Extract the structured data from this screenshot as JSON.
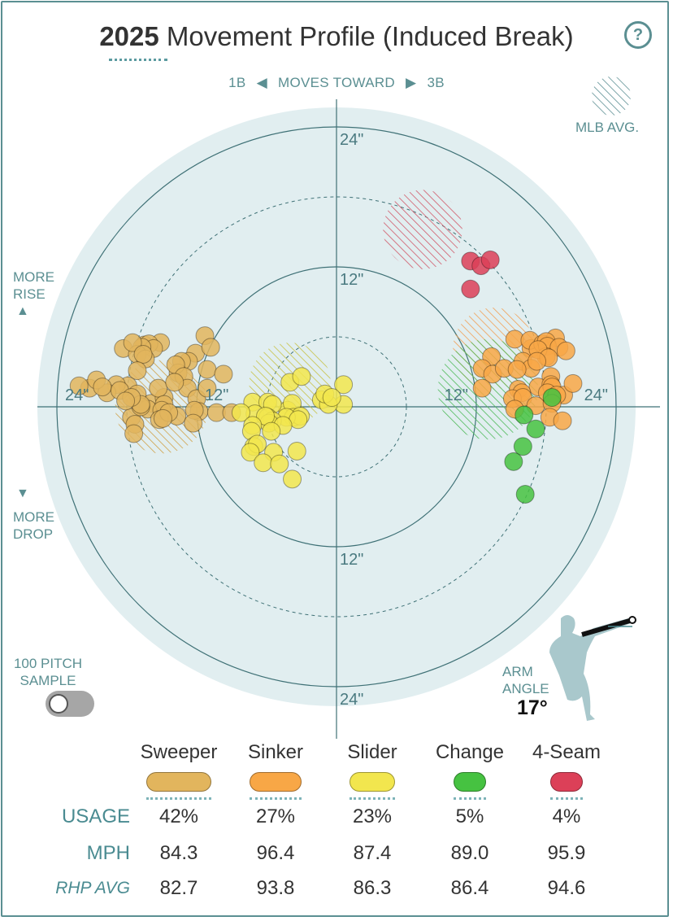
{
  "header": {
    "year": "2025",
    "title": "Movement Profile (Induced Break)",
    "help": "?"
  },
  "direction": {
    "left": "1B",
    "center": "MOVES TOWARD",
    "right": "3B"
  },
  "side_labels": {
    "rise": [
      "MORE",
      "RISE"
    ],
    "drop": [
      "MORE",
      "DROP"
    ],
    "mlb_avg": "MLB AVG."
  },
  "sample": {
    "label_line1": "100 PITCH",
    "label_line2": "SAMPLE",
    "enabled": false
  },
  "arm_angle": {
    "line1": "ARM",
    "line2": "ANGLE",
    "value": "17°"
  },
  "icons": {
    "help": "question-icon",
    "rise": "triangle-up-icon",
    "drop": "triangle-down-icon",
    "toggle": "toggle-switch",
    "pitcher": "pitcher-silhouette-icon",
    "mlb_avg": "hatched-circle-icon"
  },
  "chart_data": {
    "type": "scatter",
    "title": "Movement Profile (Induced Break)",
    "x_axis": {
      "range": [
        -24,
        24
      ],
      "unit": "in",
      "ring_labels": [
        "24\"",
        "12\"",
        "12\"",
        "24\""
      ]
    },
    "y_axis": {
      "range": [
        -24,
        24
      ],
      "unit": "in",
      "ring_labels": [
        "24\"",
        "12\"",
        "12\"",
        "24\""
      ]
    },
    "rings": [
      6,
      12,
      18,
      24
    ],
    "colors": {
      "background_disc": "#e1eef0",
      "ring": "#3f7176",
      "axis": "#3f7176"
    },
    "series": [
      {
        "name": "Sweeper",
        "color": "#e2b55d",
        "mlb_avg": {
          "x": -15,
          "y": 0,
          "r": 4
        },
        "points": [
          [
            -18.3,
            5
          ],
          [
            -16.5,
            5.3
          ],
          [
            -15.1,
            5.5
          ],
          [
            -16.1,
            5.4
          ],
          [
            -15.7,
            5
          ],
          [
            -16.7,
            5.1
          ],
          [
            -17.1,
            4.5
          ],
          [
            -17.5,
            5.5
          ],
          [
            -16.4,
            4.1
          ],
          [
            -16.6,
            4.5
          ],
          [
            -12.1,
            4.6
          ],
          [
            -12.7,
            3.9
          ],
          [
            -11.3,
            6.1
          ],
          [
            -10.8,
            5.1
          ],
          [
            -13.3,
            3.9
          ],
          [
            -13.6,
            2.9
          ],
          [
            -13.8,
            3.6
          ],
          [
            -13.1,
            2.6
          ],
          [
            -12.8,
            1.6
          ],
          [
            -11.1,
            3.2
          ],
          [
            -9.7,
            2.8
          ],
          [
            -17.1,
            3.1
          ],
          [
            -17.9,
            1.8
          ],
          [
            -18.9,
            1.9
          ],
          [
            -19.7,
            1.2
          ],
          [
            -21.2,
            1.6
          ],
          [
            -22.1,
            1.8
          ],
          [
            -20.6,
            2.3
          ],
          [
            -18.6,
            1.4
          ],
          [
            -15.9,
            0.3
          ],
          [
            -16.2,
            -0.2
          ],
          [
            -14.8,
            0.8
          ],
          [
            -15.3,
            1.6
          ],
          [
            -14.8,
            0.2
          ],
          [
            -13.7,
            -0.8
          ],
          [
            -12,
            0.7
          ],
          [
            -11.1,
            1.6
          ],
          [
            -11.8,
            -0.4
          ],
          [
            -12.2,
            -0.3
          ],
          [
            -15,
            -0.3
          ],
          [
            -17.1,
            1.1
          ],
          [
            -17.6,
            -0.9
          ],
          [
            -16.8,
            0
          ],
          [
            -15.2,
            -1.1
          ],
          [
            -16.8,
            0.2
          ],
          [
            -17.6,
            0.8
          ],
          [
            -12.3,
            -1.4
          ],
          [
            -10.3,
            -0.5
          ],
          [
            -9,
            -0.5
          ],
          [
            -14.4,
            -0.5
          ],
          [
            -17.3,
            -1.5
          ],
          [
            -17.4,
            -2.3
          ],
          [
            -14.9,
            -1
          ],
          [
            -18.1,
            0.5
          ],
          [
            -13.9,
            2.1
          ],
          [
            -20.1,
            1.7
          ]
        ],
        "usage": "42%",
        "mph": "84.3",
        "rhp_avg": "82.7",
        "pill_width": 80
      },
      {
        "name": "Sinker",
        "color": "#f8a746",
        "mlb_avg": {
          "x": 13.5,
          "y": 5,
          "r": 3.5
        },
        "points": [
          [
            15.3,
            5.8
          ],
          [
            16.7,
            5
          ],
          [
            16.6,
            5.7
          ],
          [
            17.7,
            5.4
          ],
          [
            18.8,
            5.9
          ],
          [
            18,
            5.6
          ],
          [
            18.1,
            5.2
          ],
          [
            19.1,
            5.1
          ],
          [
            19.7,
            4.8
          ],
          [
            18,
            4.3
          ],
          [
            17.3,
            4.9
          ],
          [
            18.2,
            4.2
          ],
          [
            16,
            3.9
          ],
          [
            16.7,
            3.3
          ],
          [
            17.2,
            3.9
          ],
          [
            13.3,
            4.3
          ],
          [
            12.5,
            3.3
          ],
          [
            13.4,
            2.8
          ],
          [
            14.4,
            3.3
          ],
          [
            12.5,
            1.6
          ],
          [
            15.5,
            3.2
          ],
          [
            18.4,
            2.6
          ],
          [
            17.3,
            1.7
          ],
          [
            15.6,
            1.5
          ],
          [
            15.9,
            1.2
          ],
          [
            18.4,
            1.9
          ],
          [
            18.5,
            1.7
          ],
          [
            18.1,
            1.2
          ],
          [
            19.5,
            1
          ],
          [
            18.9,
            1
          ],
          [
            20.3,
            2
          ],
          [
            15.1,
            0.7
          ],
          [
            16,
            0.8
          ],
          [
            15.3,
            -0.2
          ],
          [
            17.1,
            0.1
          ],
          [
            18.5,
            0.3
          ],
          [
            18.3,
            -0.9
          ],
          [
            19.4,
            -1.2
          ]
        ],
        "usage": "27%",
        "mph": "96.4",
        "rhp_avg": "93.8",
        "pill_width": 64
      },
      {
        "name": "Slider",
        "color": "#f2e64e",
        "mlb_avg": {
          "x": -4,
          "y": 2,
          "r": 3.5
        },
        "points": [
          [
            -4,
            2.1
          ],
          [
            -3,
            2.6
          ],
          [
            -7.2,
            0.4
          ],
          [
            -5.9,
            0.4
          ],
          [
            -4.2,
            -0.3
          ],
          [
            -3.8,
            0.3
          ],
          [
            -5.5,
            0.2
          ],
          [
            -7,
            -0.6
          ],
          [
            -3.7,
            -0.9
          ],
          [
            -3.1,
            -0.8
          ],
          [
            -8.2,
            -0.5
          ],
          [
            -5.9,
            -0.9
          ],
          [
            -4.3,
            -0.9
          ],
          [
            -3.3,
            -1.1
          ],
          [
            -5.5,
            -1.2
          ],
          [
            -5.8,
            -1.4
          ],
          [
            -6.1,
            -0.8
          ],
          [
            -7.2,
            -1.6
          ],
          [
            -4.6,
            -1.6
          ],
          [
            -7.3,
            -2.1
          ],
          [
            -5.6,
            -2.1
          ],
          [
            -7.1,
            -3.4
          ],
          [
            -6.8,
            -3.2
          ],
          [
            -7.4,
            -3.9
          ],
          [
            -5.4,
            -3.9
          ],
          [
            -3.4,
            -3.8
          ],
          [
            -6.3,
            -4.8
          ],
          [
            -4.9,
            -4.9
          ],
          [
            -3.8,
            -6.2
          ],
          [
            0.6,
            1.9
          ],
          [
            0.6,
            0.2
          ],
          [
            -1.3,
            0.6
          ],
          [
            -0.7,
            0.2
          ],
          [
            -1,
            1.1
          ],
          [
            -0.4,
            0.8
          ]
        ],
        "usage": "23%",
        "mph": "87.4",
        "rhp_avg": "86.3",
        "pill_width": 56
      },
      {
        "name": "Change",
        "color": "#46c241",
        "mlb_avg": {
          "x": 13,
          "y": 1.5,
          "r": 4.3
        },
        "points": [
          [
            18.5,
            0.8
          ],
          [
            16.1,
            -0.7
          ],
          [
            17.1,
            -1.9
          ],
          [
            16,
            -3.4
          ],
          [
            15.2,
            -4.7
          ],
          [
            16.2,
            -7.5
          ]
        ],
        "usage": "5%",
        "mph": "89.0",
        "rhp_avg": "86.4",
        "pill_width": 40
      },
      {
        "name": "4-Seam",
        "color": "#dc4058",
        "mlb_avg": {
          "x": 7.4,
          "y": 15.2,
          "r": 3.4
        },
        "points": [
          [
            11.5,
            12.5
          ],
          [
            12.4,
            12.1
          ],
          [
            13.2,
            12.6
          ],
          [
            11.5,
            10.1
          ]
        ],
        "usage": "4%",
        "mph": "95.9",
        "rhp_avg": "94.6",
        "pill_width": 40
      }
    ]
  },
  "table": {
    "row_labels": {
      "usage": "USAGE",
      "mph": "MPH",
      "rhp_avg": "RHP AVG"
    }
  }
}
